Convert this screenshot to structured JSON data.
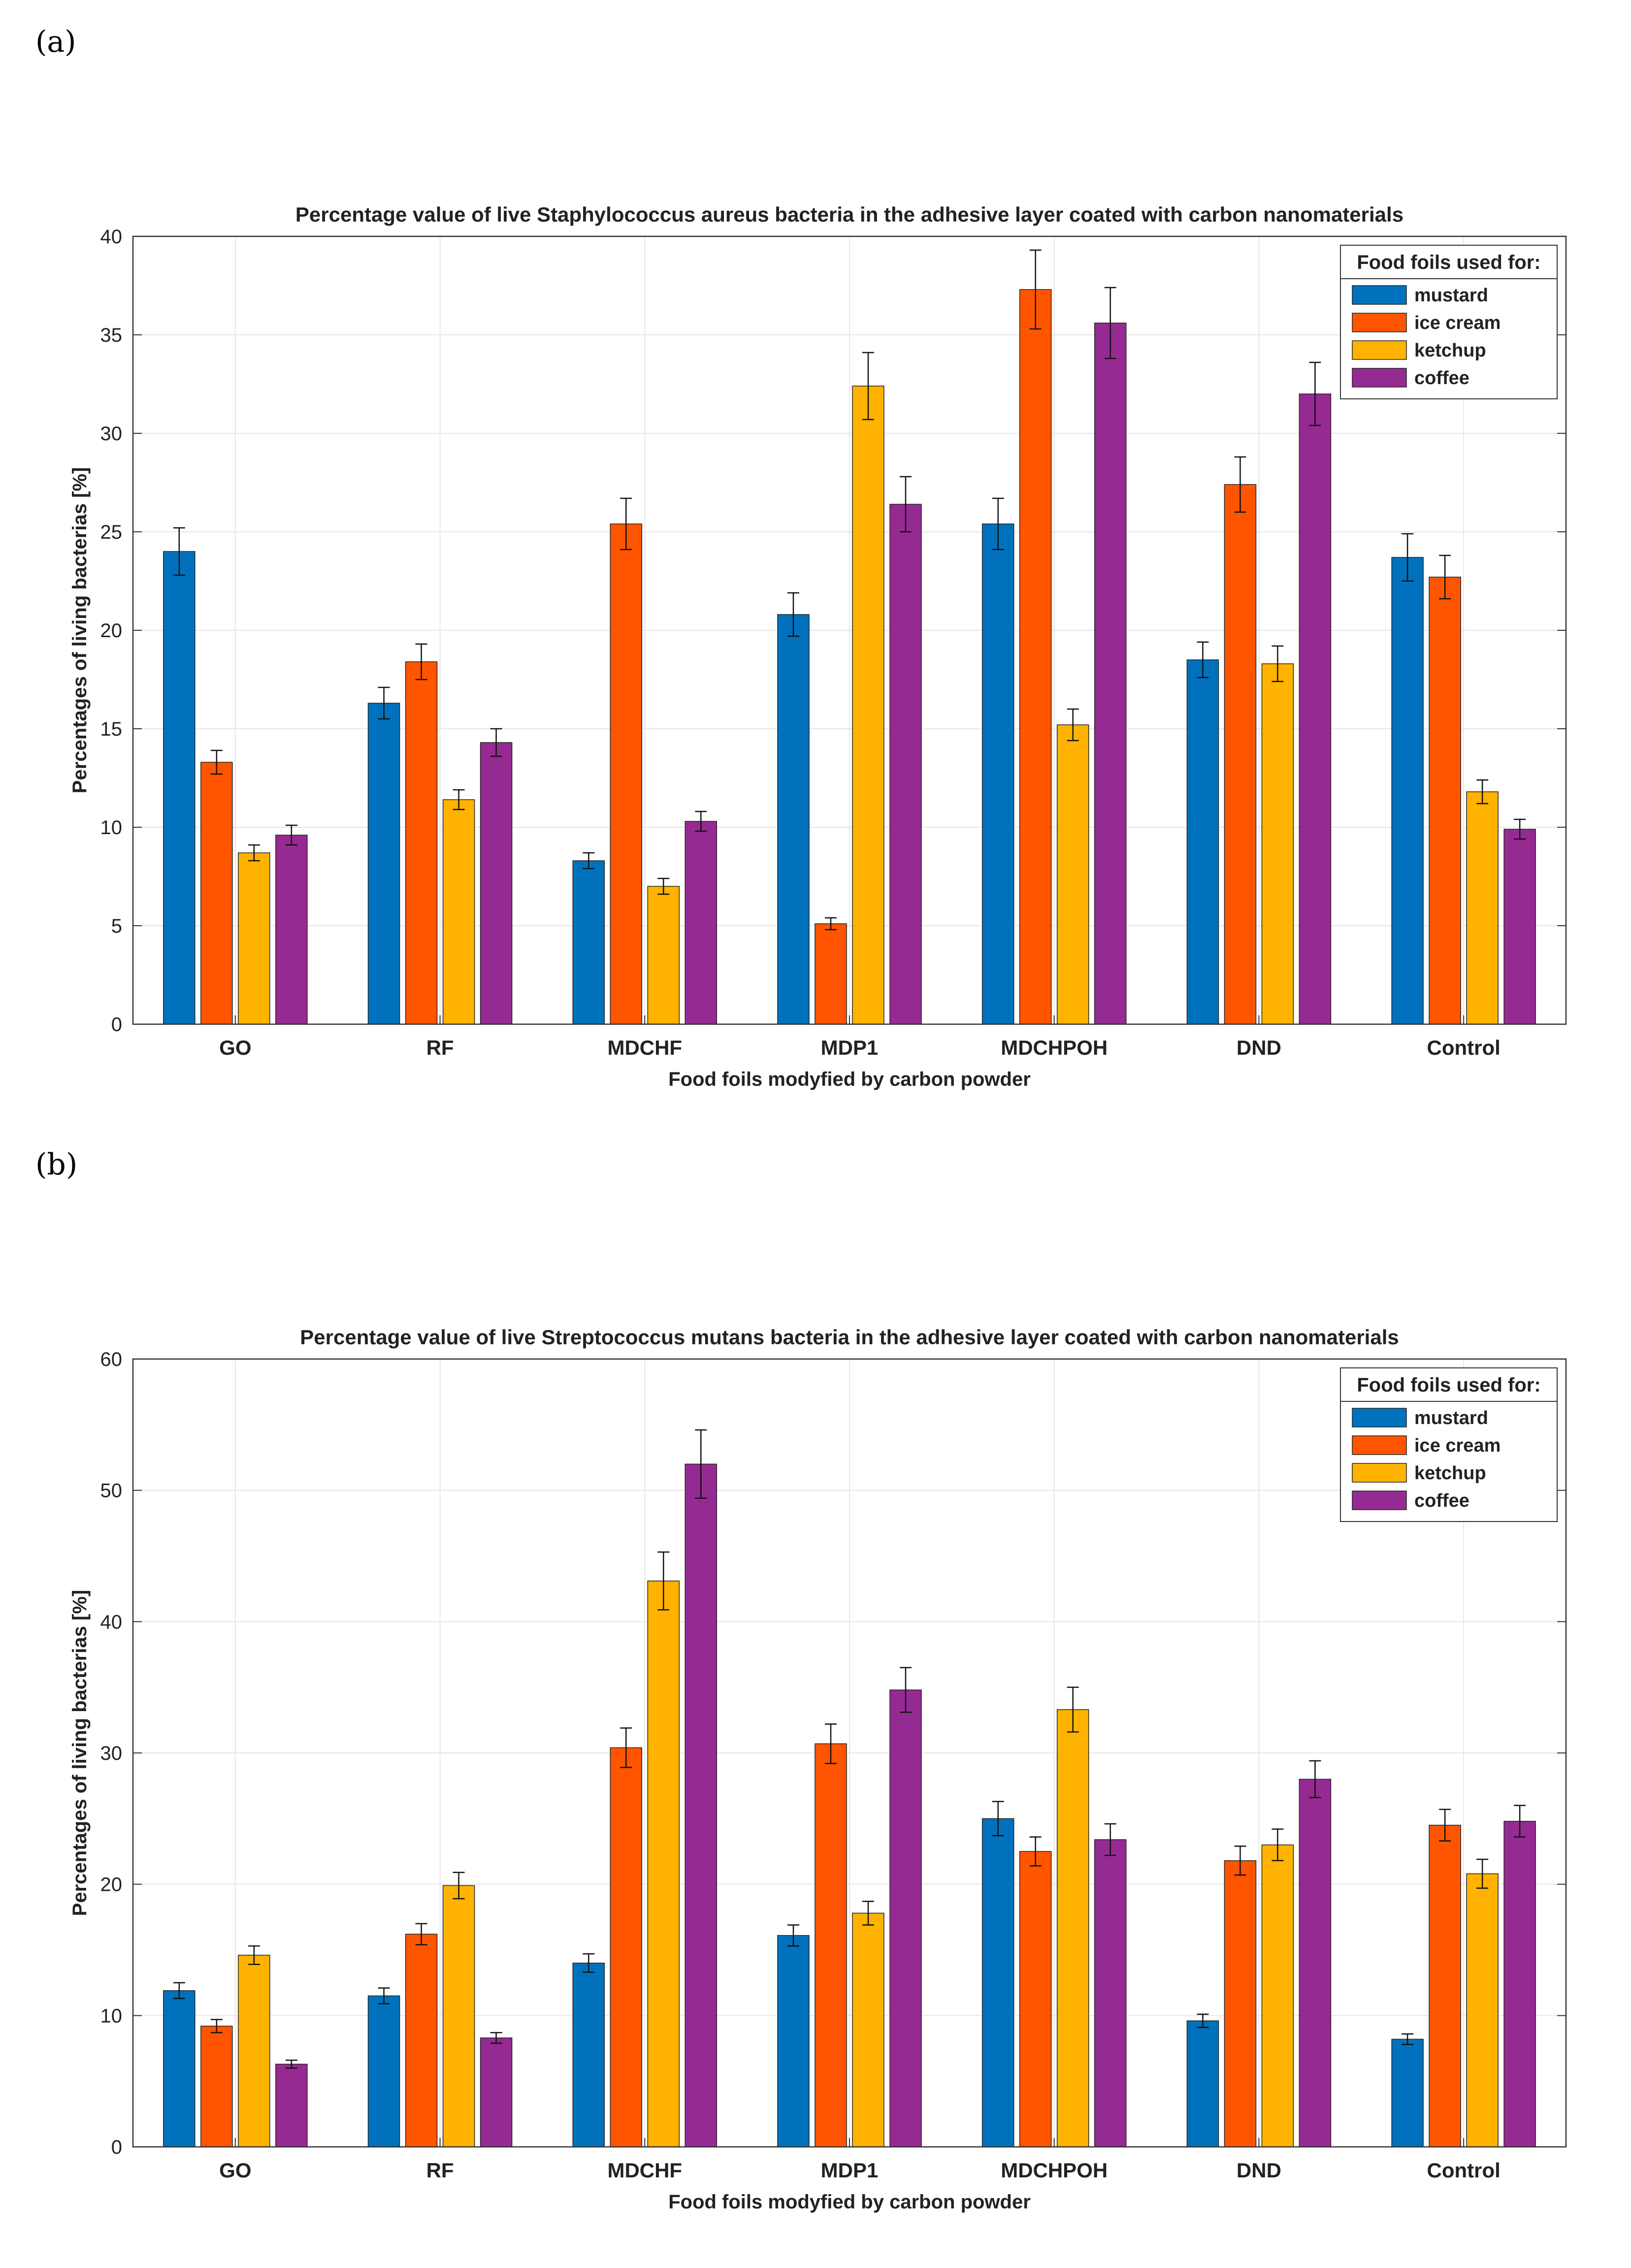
{
  "chart_data": [
    {
      "panel": "(a)",
      "type": "bar",
      "title": "Percentage value of live Staphylococcus aureus bacteria in the adhesive layer coated with carbon nanomaterials",
      "xlabel": "Food foils modyfied by carbon powder",
      "ylabel": "Percentages of living bacterias [%]",
      "ylim": [
        0,
        40
      ],
      "yticks": [
        0,
        5,
        10,
        15,
        20,
        25,
        30,
        35,
        40
      ],
      "grid": true,
      "categories": [
        "GO",
        "RF",
        "MDCHF",
        "MDP1",
        "MDCHPOH",
        "DND",
        "Control"
      ],
      "legend": {
        "title": "Food foils used for:",
        "position": "top-right"
      },
      "series": [
        {
          "name": "mustard",
          "color": "#0072BD",
          "values": [
            24.0,
            16.3,
            8.3,
            20.8,
            25.4,
            18.5,
            23.7
          ],
          "errors": [
            1.2,
            0.8,
            0.4,
            1.1,
            1.3,
            0.9,
            1.2
          ]
        },
        {
          "name": "ice cream",
          "color": "#FF5500",
          "values": [
            13.3,
            18.4,
            25.4,
            5.1,
            37.3,
            27.4,
            22.7
          ],
          "errors": [
            0.6,
            0.9,
            1.3,
            0.3,
            2.0,
            1.4,
            1.1
          ]
        },
        {
          "name": "ketchup",
          "color": "#FFB300",
          "values": [
            8.7,
            11.4,
            7.0,
            32.4,
            15.2,
            18.3,
            11.8
          ],
          "errors": [
            0.4,
            0.5,
            0.4,
            1.7,
            0.8,
            0.9,
            0.6
          ]
        },
        {
          "name": "coffee",
          "color": "#962A93",
          "values": [
            9.6,
            14.3,
            10.3,
            26.4,
            35.6,
            32.0,
            9.9
          ],
          "errors": [
            0.5,
            0.7,
            0.5,
            1.4,
            1.8,
            1.6,
            0.5
          ]
        }
      ]
    },
    {
      "panel": "(b)",
      "type": "bar",
      "title": "Percentage value of live Streptococcus mutans bacteria in the adhesive layer coated with carbon nanomaterials",
      "xlabel": "Food foils modyfied by carbon powder",
      "ylabel": "Percentages of living bacterias [%]",
      "ylim": [
        0,
        60
      ],
      "yticks": [
        0,
        10,
        20,
        30,
        40,
        50,
        60
      ],
      "grid": true,
      "categories": [
        "GO",
        "RF",
        "MDCHF",
        "MDP1",
        "MDCHPOH",
        "DND",
        "Control"
      ],
      "legend": {
        "title": "Food foils used for:",
        "position": "top-right"
      },
      "series": [
        {
          "name": "mustard",
          "color": "#0072BD",
          "values": [
            11.9,
            11.5,
            14.0,
            16.1,
            25.0,
            9.6,
            8.2
          ],
          "errors": [
            0.6,
            0.6,
            0.7,
            0.8,
            1.3,
            0.5,
            0.4
          ]
        },
        {
          "name": "ice cream",
          "color": "#FF5500",
          "values": [
            9.2,
            16.2,
            30.4,
            30.7,
            22.5,
            21.8,
            24.5
          ],
          "errors": [
            0.5,
            0.8,
            1.5,
            1.5,
            1.1,
            1.1,
            1.2
          ]
        },
        {
          "name": "ketchup",
          "color": "#FFB300",
          "values": [
            14.6,
            19.9,
            43.1,
            17.8,
            33.3,
            23.0,
            20.8
          ],
          "errors": [
            0.7,
            1.0,
            2.2,
            0.9,
            1.7,
            1.2,
            1.1
          ]
        },
        {
          "name": "coffee",
          "color": "#962A93",
          "values": [
            6.3,
            8.3,
            52.0,
            34.8,
            23.4,
            28.0,
            24.8
          ],
          "errors": [
            0.3,
            0.4,
            2.6,
            1.7,
            1.2,
            1.4,
            1.2
          ]
        }
      ]
    }
  ]
}
